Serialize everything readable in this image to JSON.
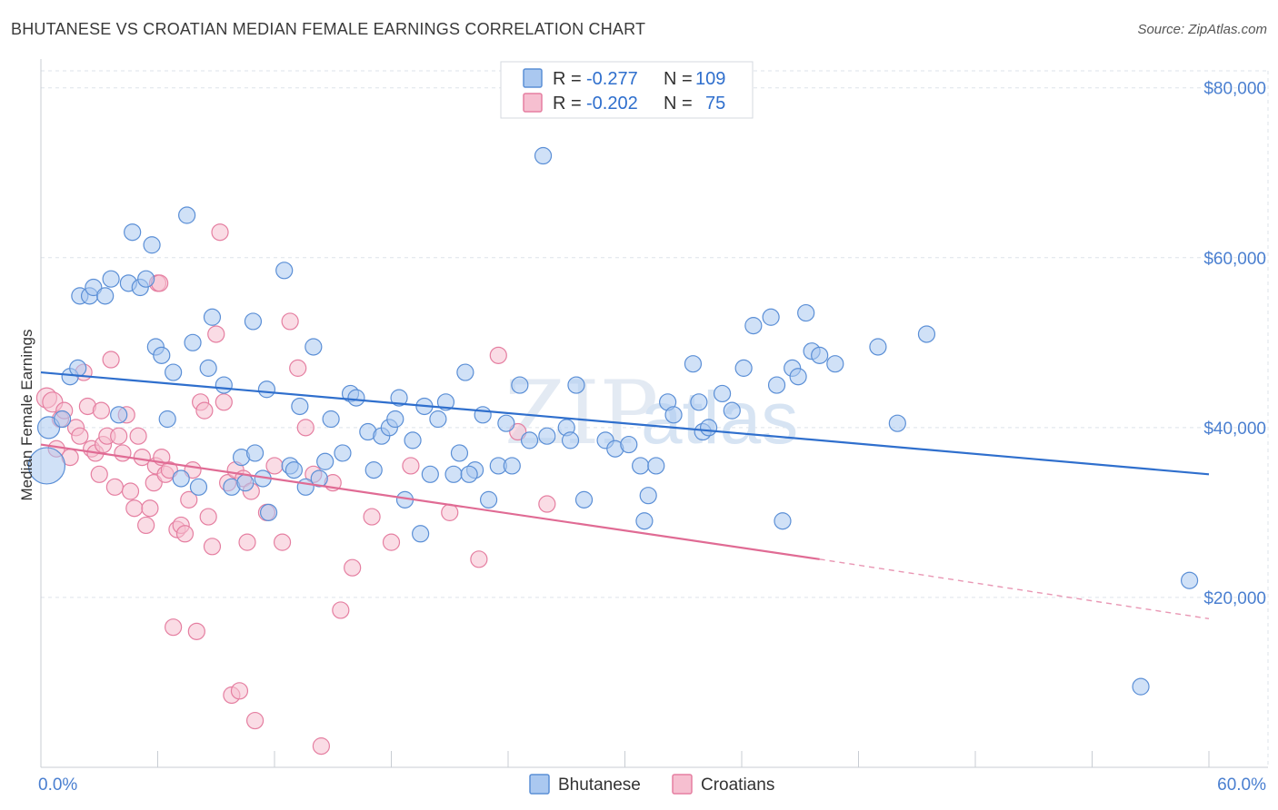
{
  "title": "BHUTANESE VS CROATIAN MEDIAN FEMALE EARNINGS CORRELATION CHART",
  "source": "Source: ZipAtlas.com",
  "watermark": {
    "zip": "ZIP",
    "atlas": "atlas"
  },
  "colors": {
    "bhutanese_fill": "#aac8f0",
    "bhutanese_stroke": "#5b8fd6",
    "bhutanese_line": "#2f6fcd",
    "croatian_fill": "#f6bfd0",
    "croatian_stroke": "#e57fa1",
    "croatian_line": "#e06b94",
    "tick_label": "#4a7fd0",
    "grid": "#dde3ea"
  },
  "legend_top": [
    {
      "r_label": "R =",
      "r_value": "-0.277",
      "n_label": "N =",
      "n_value": "109"
    },
    {
      "r_label": "R =",
      "r_value": "-0.202",
      "n_label": "N =",
      "n_value": "75"
    }
  ],
  "chart_data": {
    "type": "scatter",
    "title": "BHUTANESE VS CROATIAN MEDIAN FEMALE EARNINGS CORRELATION CHART",
    "xlabel": "",
    "ylabel": "Median Female Earnings",
    "xlim": [
      0,
      60
    ],
    "ylim": [
      0,
      82000
    ],
    "x_tick_labels": [
      "0.0%",
      "60.0%"
    ],
    "y_ticks": [
      20000,
      40000,
      60000,
      80000
    ],
    "y_tick_labels": [
      "$20,000",
      "$40,000",
      "$60,000",
      "$80,000"
    ],
    "grid": true,
    "legend": "top-center",
    "series": [
      {
        "name": "Bhutanese",
        "r": -0.277,
        "n": 109,
        "trend": {
          "x": [
            0,
            60
          ],
          "y": [
            46500,
            34500
          ],
          "dashed_from": null
        },
        "points": [
          [
            0.3,
            35500
          ],
          [
            0.4,
            40000
          ],
          [
            1.1,
            41000
          ],
          [
            1.5,
            46000
          ],
          [
            1.9,
            47000
          ],
          [
            2.0,
            55500
          ],
          [
            2.5,
            55500
          ],
          [
            2.7,
            56500
          ],
          [
            3.3,
            55500
          ],
          [
            3.6,
            57500
          ],
          [
            4.0,
            41500
          ],
          [
            4.5,
            57000
          ],
          [
            4.7,
            63000
          ],
          [
            5.1,
            56500
          ],
          [
            5.4,
            57500
          ],
          [
            5.7,
            61500
          ],
          [
            5.9,
            49500
          ],
          [
            6.2,
            48500
          ],
          [
            6.5,
            41000
          ],
          [
            6.8,
            46500
          ],
          [
            7.2,
            34000
          ],
          [
            7.5,
            65000
          ],
          [
            7.8,
            50000
          ],
          [
            8.1,
            33000
          ],
          [
            8.6,
            47000
          ],
          [
            8.8,
            53000
          ],
          [
            9.4,
            45000
          ],
          [
            9.8,
            33000
          ],
          [
            10.3,
            36500
          ],
          [
            10.5,
            33500
          ],
          [
            10.9,
            52500
          ],
          [
            11.4,
            34000
          ],
          [
            11.6,
            44500
          ],
          [
            11.7,
            30000
          ],
          [
            12.5,
            58500
          ],
          [
            12.8,
            35500
          ],
          [
            13.0,
            35000
          ],
          [
            13.3,
            42500
          ],
          [
            13.6,
            33000
          ],
          [
            14.0,
            49500
          ],
          [
            14.3,
            34000
          ],
          [
            14.6,
            36000
          ],
          [
            14.9,
            41000
          ],
          [
            15.5,
            37000
          ],
          [
            15.9,
            44000
          ],
          [
            16.2,
            43500
          ],
          [
            16.8,
            39500
          ],
          [
            17.1,
            35000
          ],
          [
            17.5,
            39000
          ],
          [
            17.9,
            40000
          ],
          [
            18.2,
            41000
          ],
          [
            18.4,
            43500
          ],
          [
            18.7,
            31500
          ],
          [
            19.1,
            38500
          ],
          [
            19.5,
            27500
          ],
          [
            19.7,
            42500
          ],
          [
            20.0,
            34500
          ],
          [
            20.4,
            41000
          ],
          [
            20.8,
            43000
          ],
          [
            21.2,
            34500
          ],
          [
            21.5,
            37000
          ],
          [
            21.8,
            46500
          ],
          [
            22.3,
            35000
          ],
          [
            22.7,
            41500
          ],
          [
            23.0,
            31500
          ],
          [
            23.5,
            35500
          ],
          [
            23.9,
            40500
          ],
          [
            24.2,
            35500
          ],
          [
            24.6,
            45000
          ],
          [
            25.1,
            38500
          ],
          [
            25.8,
            72000
          ],
          [
            27.0,
            40000
          ],
          [
            27.2,
            38500
          ],
          [
            27.5,
            45000
          ],
          [
            27.9,
            31500
          ],
          [
            29.0,
            38500
          ],
          [
            29.5,
            37500
          ],
          [
            30.2,
            38000
          ],
          [
            30.8,
            35500
          ],
          [
            31.0,
            29000
          ],
          [
            31.2,
            32000
          ],
          [
            31.6,
            35500
          ],
          [
            32.2,
            43000
          ],
          [
            32.5,
            41500
          ],
          [
            33.5,
            47500
          ],
          [
            33.8,
            43000
          ],
          [
            34.0,
            39500
          ],
          [
            34.3,
            40000
          ],
          [
            35.0,
            44000
          ],
          [
            35.5,
            42000
          ],
          [
            36.1,
            47000
          ],
          [
            36.6,
            52000
          ],
          [
            37.5,
            53000
          ],
          [
            37.8,
            45000
          ],
          [
            38.1,
            29000
          ],
          [
            38.6,
            47000
          ],
          [
            38.9,
            46000
          ],
          [
            39.3,
            53500
          ],
          [
            39.6,
            49000
          ],
          [
            40.0,
            48500
          ],
          [
            40.8,
            47500
          ],
          [
            43.0,
            49500
          ],
          [
            44.0,
            40500
          ],
          [
            45.5,
            51000
          ],
          [
            56.5,
            9500
          ],
          [
            59.0,
            22000
          ],
          [
            22.0,
            34500
          ],
          [
            26.0,
            39000
          ],
          [
            11.0,
            37000
          ]
        ]
      },
      {
        "name": "Croatians",
        "r": -0.202,
        "n": 75,
        "trend": {
          "x": [
            0,
            40
          ],
          "y": [
            38000,
            24500
          ],
          "dashed_to": [
            60,
            17500
          ]
        },
        "points": [
          [
            0.3,
            43500
          ],
          [
            0.6,
            43000
          ],
          [
            0.8,
            37500
          ],
          [
            1.0,
            41000
          ],
          [
            1.2,
            42000
          ],
          [
            1.5,
            36500
          ],
          [
            1.8,
            40000
          ],
          [
            2.0,
            39000
          ],
          [
            2.2,
            46500
          ],
          [
            2.4,
            42500
          ],
          [
            2.6,
            37500
          ],
          [
            2.8,
            37000
          ],
          [
            3.0,
            34500
          ],
          [
            3.2,
            38000
          ],
          [
            3.4,
            39000
          ],
          [
            3.6,
            48000
          ],
          [
            3.8,
            33000
          ],
          [
            4.0,
            39000
          ],
          [
            4.2,
            37000
          ],
          [
            4.4,
            41500
          ],
          [
            4.6,
            32500
          ],
          [
            4.8,
            30500
          ],
          [
            5.0,
            39000
          ],
          [
            5.2,
            36500
          ],
          [
            5.4,
            28500
          ],
          [
            5.6,
            30500
          ],
          [
            5.8,
            33500
          ],
          [
            5.9,
            35500
          ],
          [
            6.0,
            57000
          ],
          [
            6.2,
            36500
          ],
          [
            6.4,
            34500
          ],
          [
            6.6,
            35000
          ],
          [
            6.8,
            16500
          ],
          [
            7.0,
            28000
          ],
          [
            7.2,
            28500
          ],
          [
            7.4,
            27500
          ],
          [
            7.6,
            31500
          ],
          [
            7.8,
            35000
          ],
          [
            8.0,
            16000
          ],
          [
            8.2,
            43000
          ],
          [
            8.4,
            42000
          ],
          [
            8.6,
            29500
          ],
          [
            8.8,
            26000
          ],
          [
            9.0,
            51000
          ],
          [
            9.2,
            63000
          ],
          [
            9.4,
            43000
          ],
          [
            9.6,
            33500
          ],
          [
            9.8,
            8500
          ],
          [
            10.0,
            35000
          ],
          [
            10.2,
            9000
          ],
          [
            10.4,
            34000
          ],
          [
            10.6,
            26500
          ],
          [
            10.8,
            32500
          ],
          [
            11.0,
            5500
          ],
          [
            11.6,
            30000
          ],
          [
            12.0,
            35500
          ],
          [
            12.4,
            26500
          ],
          [
            12.8,
            52500
          ],
          [
            13.2,
            47000
          ],
          [
            13.6,
            40000
          ],
          [
            14.0,
            34500
          ],
          [
            14.4,
            2500
          ],
          [
            15.0,
            33500
          ],
          [
            15.4,
            18500
          ],
          [
            16.0,
            23500
          ],
          [
            17.0,
            29500
          ],
          [
            18.0,
            26500
          ],
          [
            19.0,
            35500
          ],
          [
            21.0,
            30000
          ],
          [
            22.5,
            24500
          ],
          [
            23.5,
            48500
          ],
          [
            24.5,
            39500
          ],
          [
            26.0,
            31000
          ],
          [
            6.1,
            57000
          ],
          [
            3.1,
            42000
          ]
        ]
      }
    ]
  },
  "bottom_legend": [
    "Bhutanese",
    "Croatians"
  ]
}
